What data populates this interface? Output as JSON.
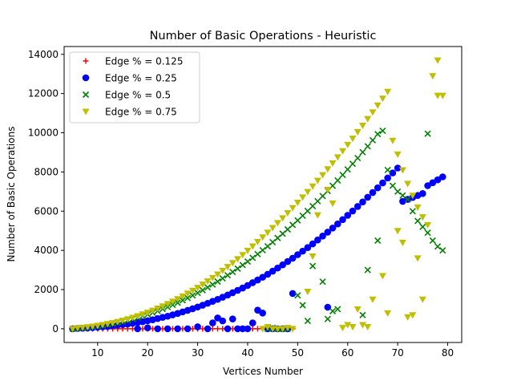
{
  "chart_data": {
    "type": "scatter",
    "title": "Number of Basic Operations - Heuristic",
    "xlabel": "Vertices Number",
    "ylabel": "Number of Basic Operations",
    "xlim": [
      3.3,
      82.8
    ],
    "ylim": [
      -700,
      14400
    ],
    "xticks": [
      10,
      20,
      30,
      40,
      50,
      60,
      70,
      80
    ],
    "yticks": [
      0,
      2000,
      4000,
      6000,
      8000,
      10000,
      12000,
      14000
    ],
    "grid": false,
    "legend_position": "top-left",
    "series": [
      {
        "name": "Edge % = 0.125",
        "color": "#ff0000",
        "marker": "plus",
        "x": [
          5,
          6,
          7,
          8,
          9,
          10,
          11,
          12,
          13,
          14,
          15,
          16,
          17,
          18,
          19,
          20,
          21,
          22,
          23,
          24,
          25,
          26,
          27,
          28,
          29,
          30,
          31,
          32,
          33,
          34,
          35,
          36,
          37,
          38,
          39,
          40,
          41,
          42,
          43,
          44,
          45,
          46,
          47,
          48,
          49
        ],
        "y": [
          0,
          0,
          0,
          0,
          0,
          0,
          0,
          0,
          0,
          0,
          0,
          0,
          0,
          0,
          0,
          0,
          0,
          0,
          0,
          0,
          0,
          0,
          0,
          0,
          0,
          0,
          0,
          0,
          0,
          0,
          0,
          0,
          0,
          0,
          0,
          0,
          0,
          0,
          0,
          0,
          0,
          0,
          0,
          0,
          0
        ]
      },
      {
        "name": "Edge % = 0.25",
        "color": "#0000ff",
        "marker": "circle",
        "x": [
          5,
          6,
          7,
          8,
          9,
          10,
          11,
          12,
          13,
          14,
          15,
          16,
          17,
          18,
          19,
          20,
          21,
          22,
          23,
          24,
          25,
          26,
          27,
          28,
          29,
          30,
          31,
          32,
          33,
          34,
          35,
          36,
          37,
          38,
          39,
          40,
          41,
          42,
          43,
          44,
          45,
          46,
          47,
          48,
          49,
          50,
          51,
          52,
          53,
          54,
          55,
          56,
          57,
          58,
          59,
          60,
          61,
          62,
          63,
          64,
          65,
          66,
          67,
          68,
          69,
          70,
          71,
          72,
          73,
          74,
          75,
          76,
          77,
          78,
          79,
          18,
          20,
          22,
          24,
          26,
          28,
          30,
          32,
          33,
          34,
          35,
          36,
          37,
          38,
          39,
          40,
          41,
          42,
          43,
          44,
          45,
          46,
          47,
          48,
          49,
          56
        ],
        "y": [
          0,
          20,
          30,
          40,
          60,
          80,
          100,
          120,
          150,
          180,
          210,
          240,
          280,
          320,
          360,
          410,
          460,
          520,
          580,
          640,
          710,
          780,
          860,
          940,
          1020,
          1110,
          1200,
          1300,
          1400,
          1500,
          1610,
          1720,
          1840,
          1960,
          2080,
          2210,
          2350,
          2490,
          2630,
          2780,
          2940,
          3100,
          3260,
          3430,
          3600,
          3780,
          3960,
          4140,
          4330,
          4530,
          4730,
          4930,
          5140,
          5350,
          5570,
          5790,
          6010,
          6240,
          6470,
          6710,
          6950,
          7190,
          7440,
          7690,
          7950,
          8200,
          6500,
          6600,
          6700,
          6800,
          6900,
          7300,
          7450,
          7600,
          7750,
          0,
          50,
          0,
          0,
          0,
          0,
          100,
          0,
          300,
          550,
          400,
          0,
          500,
          0,
          0,
          0,
          300,
          950,
          800,
          0,
          0,
          0,
          0,
          0,
          1800,
          1100
        ]
      },
      {
        "name": "Edge % = 0.5",
        "color": "#008000",
        "marker": "x",
        "x": [
          5,
          6,
          7,
          8,
          9,
          10,
          11,
          12,
          13,
          14,
          15,
          16,
          17,
          18,
          19,
          20,
          21,
          22,
          23,
          24,
          25,
          26,
          27,
          28,
          29,
          30,
          31,
          32,
          33,
          34,
          35,
          36,
          37,
          38,
          39,
          40,
          41,
          42,
          43,
          44,
          45,
          46,
          47,
          48,
          49,
          50,
          51,
          52,
          53,
          54,
          55,
          56,
          57,
          58,
          59,
          60,
          61,
          62,
          63,
          64,
          65,
          66,
          67,
          68,
          69,
          70,
          71,
          72,
          73,
          74,
          75,
          76,
          77,
          78,
          79,
          44,
          45,
          46,
          47,
          48,
          50,
          51,
          52,
          53,
          55,
          56,
          57,
          58,
          63,
          64,
          66,
          76
        ],
        "y": [
          0,
          30,
          50,
          70,
          100,
          130,
          170,
          210,
          260,
          310,
          370,
          430,
          500,
          570,
          650,
          730,
          820,
          910,
          1010,
          1110,
          1220,
          1330,
          1450,
          1570,
          1700,
          1830,
          1970,
          2110,
          2260,
          2410,
          2570,
          2730,
          2900,
          3070,
          3250,
          3430,
          3620,
          3810,
          4010,
          4210,
          4420,
          4630,
          4850,
          5070,
          5300,
          5530,
          5770,
          6010,
          6260,
          6510,
          6770,
          7030,
          7300,
          7570,
          7850,
          8130,
          8420,
          8710,
          9010,
          9310,
          9620,
          9930,
          10100,
          8100,
          7300,
          7000,
          6800,
          6600,
          6000,
          5500,
          5200,
          4900,
          4500,
          4200,
          4000,
          0,
          50,
          0,
          0,
          0,
          1700,
          1200,
          400,
          3200,
          2400,
          500,
          900,
          1000,
          700,
          3000,
          4500,
          9950
        ]
      },
      {
        "name": "Edge % = 0.75",
        "color": "#bfbf00",
        "marker": "triangle-down",
        "x": [
          5,
          6,
          7,
          8,
          9,
          10,
          11,
          12,
          13,
          14,
          15,
          16,
          17,
          18,
          19,
          20,
          21,
          22,
          23,
          24,
          25,
          26,
          27,
          28,
          29,
          30,
          31,
          32,
          33,
          34,
          35,
          36,
          37,
          38,
          39,
          40,
          41,
          42,
          43,
          44,
          45,
          46,
          47,
          48,
          49,
          50,
          51,
          52,
          53,
          54,
          55,
          56,
          57,
          58,
          59,
          60,
          61,
          62,
          63,
          64,
          65,
          66,
          67,
          68,
          69,
          70,
          71,
          72,
          73,
          74,
          75,
          76,
          77,
          78,
          79,
          43,
          44,
          45,
          46,
          47,
          48,
          49,
          52,
          53,
          54,
          56,
          57,
          59,
          60,
          61,
          62,
          63,
          64,
          65,
          67,
          68,
          70,
          71,
          72,
          73,
          74,
          75,
          78
        ],
        "y": [
          0,
          40,
          60,
          90,
          120,
          160,
          200,
          250,
          300,
          360,
          420,
          490,
          570,
          650,
          740,
          830,
          930,
          1040,
          1150,
          1270,
          1390,
          1520,
          1660,
          1800,
          1950,
          2100,
          2260,
          2430,
          2600,
          2780,
          2970,
          3160,
          3360,
          3560,
          3770,
          3990,
          4210,
          4440,
          4670,
          4910,
          5150,
          5400,
          5650,
          5910,
          6170,
          6440,
          6710,
          6990,
          7270,
          7560,
          7850,
          8150,
          8450,
          8760,
          9070,
          9390,
          9710,
          10040,
          10370,
          10710,
          11050,
          11400,
          11750,
          12100,
          9600,
          8900,
          8100,
          7400,
          6800,
          6200,
          5700,
          5300,
          12900,
          13700,
          11900,
          0,
          100,
          0,
          0,
          0,
          50,
          0,
          1900,
          3700,
          5800,
          7100,
          6400,
          50,
          200,
          100,
          1000,
          200,
          100,
          1500,
          2700,
          800,
          5000,
          4400,
          600,
          700,
          3600,
          1500,
          11900
        ]
      }
    ]
  }
}
